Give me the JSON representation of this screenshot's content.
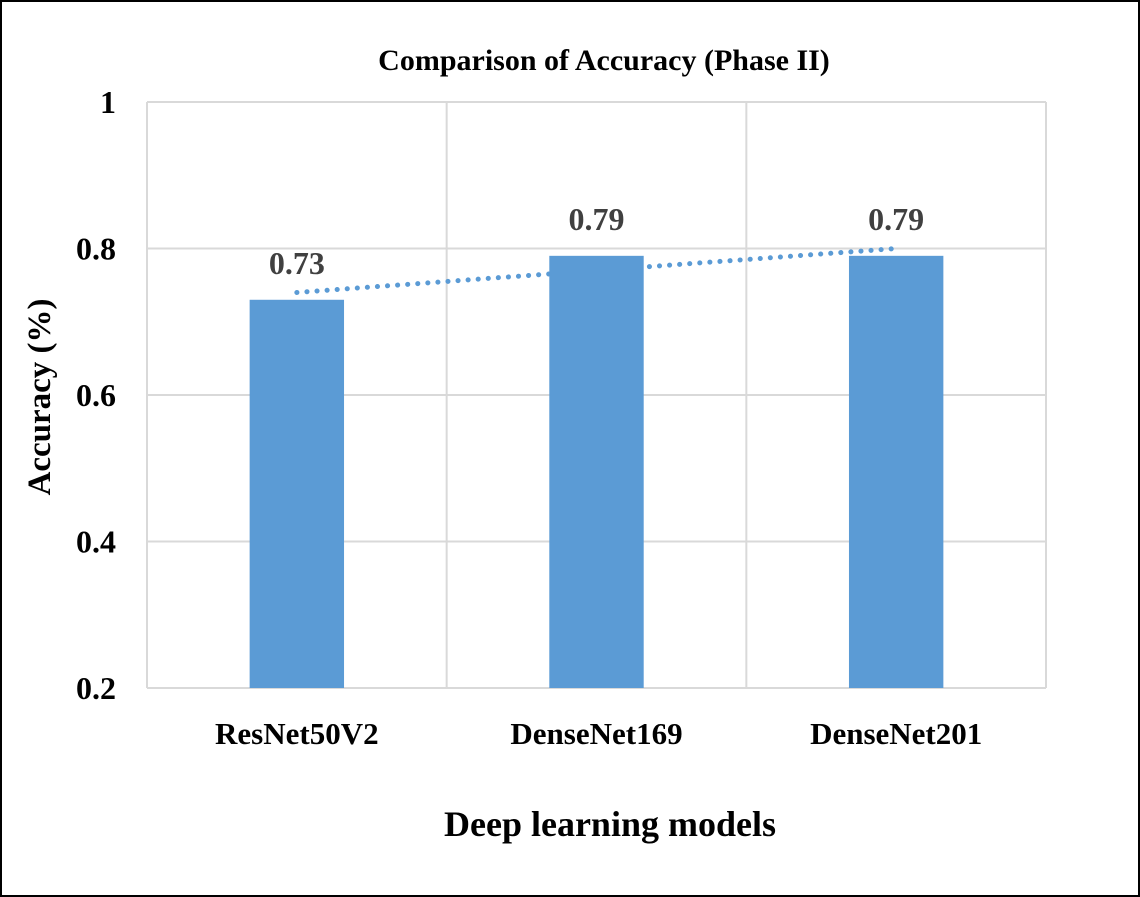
{
  "chart_data": {
    "type": "bar",
    "title": "Comparison of Accuracy (Phase II)",
    "xlabel": "Deep learning models",
    "ylabel": "Accuracy  (%)",
    "categories": [
      "ResNet50V2",
      "DenseNet169",
      "DenseNet201"
    ],
    "values": [
      0.73,
      0.79,
      0.79
    ],
    "value_labels": [
      "0.73",
      "0.79",
      "0.79"
    ],
    "ylim": [
      0.2,
      1
    ],
    "yticks": [
      0.2,
      0.4,
      0.6,
      0.8,
      1
    ],
    "ytick_labels": [
      "0.2",
      "0.4",
      "0.6",
      "0.8",
      "1"
    ],
    "grid": true,
    "legend": "none",
    "trendline": {
      "type": "linear",
      "style": "dotted"
    },
    "colors": {
      "bar": "#5b9bd5",
      "trendline": "#5b9bd5",
      "grid": "#d9d9d9",
      "text": "#000000",
      "data_label": "#404040"
    }
  }
}
